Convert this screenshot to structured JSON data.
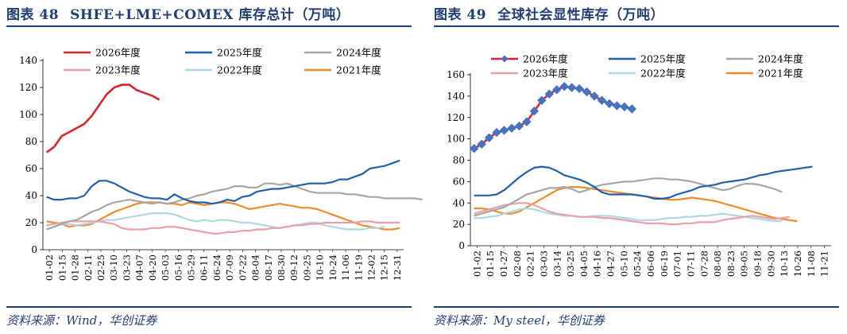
{
  "figures": [
    {
      "number": "图表 48",
      "title": "SHFE+LME+COMEX 库存总计（万吨）",
      "source": "资料来源：Wind，华创证券",
      "chart_data": {
        "type": "line",
        "title": "SHFE+LME+COMEX 库存总计（万吨）",
        "ylim": [
          0,
          140
        ],
        "yticks": [
          0,
          20,
          40,
          60,
          80,
          100,
          120,
          140
        ],
        "x_ticks": [
          "01-02",
          "01-15",
          "01-28",
          "02-11",
          "02-25",
          "03-10",
          "03-23",
          "04-07",
          "04-20",
          "05-03",
          "05-16",
          "05-29",
          "06-11",
          "06-24",
          "07-09",
          "07-22",
          "08-04",
          "08-17",
          "08-30",
          "09-12",
          "09-25",
          "10-10",
          "10-24",
          "11-06",
          "11-19",
          "12-02",
          "12-15",
          "12-31"
        ],
        "legend_position": "top",
        "series": [
          {
            "name": "2026年度",
            "color": "#d9252b",
            "values": [
              72,
              76,
              84,
              87,
              90,
              93,
              99,
              107,
              115,
              120,
              122,
              122,
              118,
              116,
              114,
              111
            ]
          },
          {
            "name": "2025年度",
            "color": "#1f5fae",
            "values": [
              39,
              37,
              37,
              38,
              38,
              40,
              47,
              51,
              51,
              49,
              46,
              43,
              41,
              39,
              38,
              38,
              37,
              41,
              38,
              36,
              35,
              35,
              34,
              35,
              37,
              36,
              39,
              40,
              43,
              44,
              45,
              45,
              46,
              47,
              48,
              49,
              49,
              49,
              50,
              52,
              52,
              54,
              56,
              60,
              61,
              62,
              64,
              66
            ]
          },
          {
            "name": "2024年度",
            "color": "#a6a6a6",
            "values": [
              15,
              17,
              19,
              21,
              22,
              25,
              28,
              30,
              33,
              35,
              36,
              37,
              36,
              35,
              34,
              35,
              34,
              35,
              37,
              38,
              40,
              41,
              43,
              44,
              45,
              47,
              47,
              46,
              46,
              49,
              49,
              48,
              49,
              47,
              45,
              43,
              42,
              42,
              42,
              42,
              41,
              41,
              40,
              39,
              39,
              38,
              38,
              38,
              38,
              38,
              37
            ]
          },
          {
            "name": "2023年度",
            "color": "#e8a0a8",
            "values": [
              18,
              19,
              20,
              21,
              21,
              21,
              21,
              21,
              20,
              19,
              16,
              15,
              15,
              15,
              16,
              16,
              17,
              17,
              16,
              15,
              14,
              13,
              12,
              12,
              13,
              13,
              14,
              14,
              15,
              15,
              16,
              16,
              17,
              18,
              18,
              19,
              19,
              20,
              20,
              20,
              20,
              20,
              21,
              21,
              20,
              20,
              20,
              20
            ]
          },
          {
            "name": "2022年度",
            "color": "#add8e6",
            "values": [
              15,
              17,
              19,
              19,
              18,
              19,
              20,
              21,
              22,
              22,
              23,
              24,
              25,
              26,
              27,
              27,
              27,
              26,
              24,
              22,
              21,
              22,
              21,
              22,
              22,
              21,
              20,
              20,
              19,
              18,
              17,
              16,
              17,
              18,
              19,
              20,
              20,
              18,
              17,
              16,
              15,
              15,
              15,
              16,
              16,
              17
            ]
          },
          {
            "name": "2021年度",
            "color": "#f08a2b",
            "values": [
              21,
              20,
              19,
              17,
              18,
              18,
              19,
              22,
              25,
              28,
              30,
              32,
              34,
              35,
              35,
              35,
              34,
              34,
              33,
              35,
              34,
              33,
              34,
              35,
              35,
              34,
              32,
              30,
              31,
              32,
              33,
              34,
              33,
              32,
              31,
              31,
              30,
              28,
              26,
              24,
              22,
              20,
              18,
              17,
              16,
              15,
              15,
              16
            ]
          }
        ]
      }
    },
    {
      "number": "图表 49",
      "title": "全球社会显性库存（万吨）",
      "source": "资料来源：My steel，华创证券",
      "chart_data": {
        "type": "line",
        "title": "全球社会显性库存（万吨）",
        "ylim": [
          0,
          160
        ],
        "yticks": [
          0,
          20,
          40,
          60,
          80,
          100,
          120,
          140,
          160
        ],
        "x_ticks": [
          "01-02",
          "01-15",
          "01-27",
          "02-08",
          "02-21",
          "03-03",
          "03-14",
          "03-25",
          "04-05",
          "04-16",
          "04-27",
          "05-10",
          "05-24",
          "06-06",
          "06-19",
          "07-01",
          "07-11",
          "07-28",
          "08-08",
          "08-23",
          "09-05",
          "09-18",
          "09-30",
          "10-13",
          "10-26",
          "11-08",
          "11-21"
        ],
        "legend_position": "top",
        "series": [
          {
            "name": "2026年度",
            "color": "#d9252b",
            "marker": "diamond",
            "marker_color": "#4472c4",
            "values": [
              91,
              95,
              101,
              106,
              108,
              110,
              112,
              116,
              126,
              136,
              142,
              146,
              149,
              148,
              147,
              144,
              140,
              136,
              133,
              131,
              130,
              128
            ]
          },
          {
            "name": "2025年度",
            "color": "#1f5fae",
            "values": [
              47,
              47,
              47,
              48,
              52,
              58,
              64,
              69,
              73,
              74,
              73,
              70,
              66,
              64,
              62,
              59,
              55,
              50,
              48,
              48,
              48,
              48,
              47,
              46,
              44,
              44,
              45,
              48,
              50,
              52,
              55,
              56,
              57,
              59,
              60,
              61,
              62,
              64,
              66,
              67,
              69,
              70,
              71,
              72,
              73,
              74
            ]
          },
          {
            "name": "2024年度",
            "color": "#a6a6a6",
            "values": [
              28,
              30,
              32,
              34,
              36,
              40,
              44,
              48,
              50,
              52,
              54,
              54,
              55,
              53,
              50,
              52,
              55,
              57,
              58,
              59,
              60,
              60,
              61,
              62,
              63,
              63,
              62,
              62,
              61,
              60,
              58,
              56,
              54,
              52,
              53,
              56,
              58,
              58,
              57,
              55,
              53,
              50
            ]
          },
          {
            "name": "2023年度",
            "color": "#e8a0a8",
            "values": [
              30,
              32,
              34,
              36,
              38,
              39,
              40,
              40,
              38,
              35,
              32,
              30,
              29,
              28,
              27,
              27,
              27,
              26,
              26,
              25,
              24,
              23,
              22,
              21,
              21,
              21,
              20,
              20,
              21,
              21,
              22,
              22,
              22,
              24,
              25,
              26,
              27,
              28,
              27,
              26,
              25,
              26,
              27
            ]
          },
          {
            "name": "2022年度",
            "color": "#add8e6",
            "values": [
              26,
              26,
              27,
              28,
              30,
              32,
              34,
              35,
              34,
              32,
              30,
              29,
              28,
              28,
              27,
              27,
              28,
              28,
              28,
              27,
              26,
              25,
              24,
              24,
              24,
              25,
              26,
              26,
              27,
              27,
              28,
              28,
              29,
              30,
              29,
              28,
              27,
              26,
              25,
              24,
              23,
              23
            ]
          },
          {
            "name": "2021年度",
            "color": "#f08a2b",
            "values": [
              35,
              35,
              34,
              32,
              30,
              30,
              32,
              36,
              40,
              44,
              48,
              52,
              54,
              55,
              55,
              54,
              53,
              52,
              51,
              50,
              49,
              48,
              47,
              46,
              45,
              44,
              43,
              43,
              44,
              45,
              44,
              43,
              42,
              40,
              38,
              36,
              34,
              32,
              30,
              28,
              26,
              25,
              24,
              23
            ]
          }
        ]
      }
    }
  ]
}
